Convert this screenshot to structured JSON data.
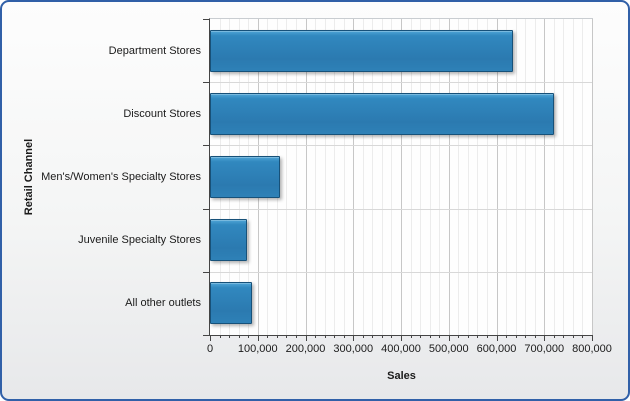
{
  "window": {
    "border_color": "#3160a8",
    "background_top": "#fdfdfd",
    "background_bottom": "#e7e8ea"
  },
  "chart_data": {
    "type": "bar",
    "orientation": "horizontal",
    "title": "",
    "xlabel": "Sales",
    "ylabel": "Retail Channel",
    "categories": [
      "Department Stores",
      "Discount Stores",
      "Men's/Women's Specialty Stores",
      "Juvenile Specialty Stores",
      "All other outlets"
    ],
    "values": [
      635000,
      720000,
      147000,
      78000,
      89000
    ],
    "xlim": [
      0,
      800000
    ],
    "x_major_step": 100000,
    "x_minor_step": 20000,
    "x_tick_labels": [
      "0",
      "100,000",
      "200,000",
      "300,000",
      "400,000",
      "500,000",
      "600,000",
      "700,000",
      "800,000"
    ],
    "grid": "vertical major+minor, horizontal row separators",
    "legend": "none",
    "bar_color": "#2E7FB5",
    "bar_border_color": "#175179"
  }
}
